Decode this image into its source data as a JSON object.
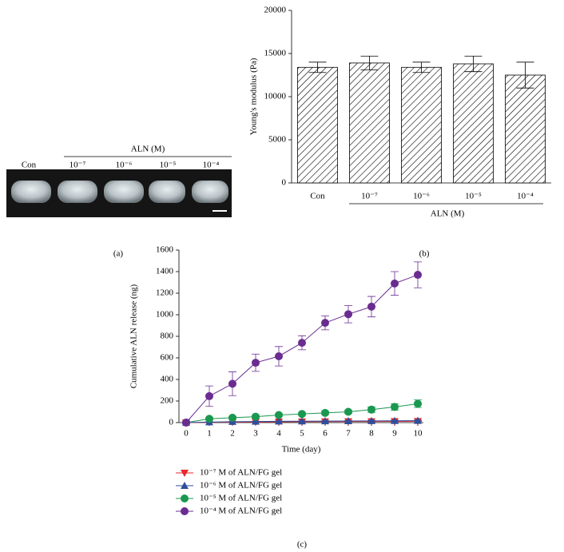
{
  "photo": {
    "group_label": "ALN (M)",
    "labels": [
      "Con",
      "10⁻⁷",
      "10⁻⁶",
      "10⁻⁵",
      "10⁻⁴"
    ],
    "panel_label": "(a)"
  },
  "chart_data": [
    {
      "type": "bar",
      "panel_label": "(b)",
      "ylabel": "Young's modulus (Pa)",
      "group_label": "ALN (M)",
      "categories": [
        "Con",
        "10⁻⁷",
        "10⁻⁶",
        "10⁻⁵",
        "10⁻⁴"
      ],
      "values": [
        13400,
        13900,
        13400,
        13800,
        12500
      ],
      "errors": [
        600,
        800,
        600,
        900,
        1500
      ],
      "color": "#000000",
      "ylim": [
        0,
        20000
      ],
      "yticks": [
        0,
        5000,
        10000,
        15000,
        20000
      ]
    },
    {
      "type": "line",
      "panel_label": "(c)",
      "xlabel": "Time (day)",
      "ylabel": "Cumulative ALN release (ng)",
      "x": [
        0,
        1,
        2,
        3,
        4,
        5,
        6,
        7,
        8,
        9,
        10
      ],
      "xlim": [
        0,
        10
      ],
      "xticks": [
        0,
        1,
        2,
        3,
        4,
        5,
        6,
        7,
        8,
        9,
        10
      ],
      "ylim": [
        0,
        1600
      ],
      "yticks": [
        0,
        200,
        400,
        600,
        800,
        1000,
        1200,
        1400,
        1600
      ],
      "series": [
        {
          "name": "10⁻⁷ M of ALN/FG gel",
          "color": "#e8262b",
          "marker": "triangle-down",
          "values": [
            0,
            3,
            5,
            6,
            7,
            8,
            9,
            10,
            10,
            11,
            12
          ],
          "errors": [
            1,
            2,
            2,
            2,
            2,
            2,
            2,
            2,
            3,
            3,
            3
          ]
        },
        {
          "name": "10⁻⁶ M of ALN/FG gel",
          "color": "#2e4f9e",
          "marker": "triangle-up",
          "values": [
            0,
            5,
            8,
            10,
            12,
            13,
            14,
            15,
            16,
            17,
            18
          ],
          "errors": [
            1,
            2,
            2,
            2,
            3,
            3,
            3,
            3,
            3,
            4,
            4
          ]
        },
        {
          "name": "10⁻⁵ M of ALN/FG gel",
          "color": "#1a9850",
          "marker": "circle",
          "values": [
            0,
            35,
            45,
            55,
            70,
            80,
            90,
            100,
            120,
            145,
            175
          ],
          "errors": [
            5,
            10,
            10,
            12,
            12,
            12,
            15,
            15,
            25,
            30,
            35
          ]
        },
        {
          "name": "10⁻⁴ M of ALN/FG gel",
          "color": "#6a2c91",
          "marker": "circle",
          "values": [
            0,
            245,
            360,
            555,
            615,
            740,
            925,
            1005,
            1075,
            1290,
            1370
          ],
          "errors": [
            10,
            95,
            110,
            80,
            90,
            65,
            65,
            80,
            95,
            110,
            120
          ]
        }
      ]
    }
  ]
}
